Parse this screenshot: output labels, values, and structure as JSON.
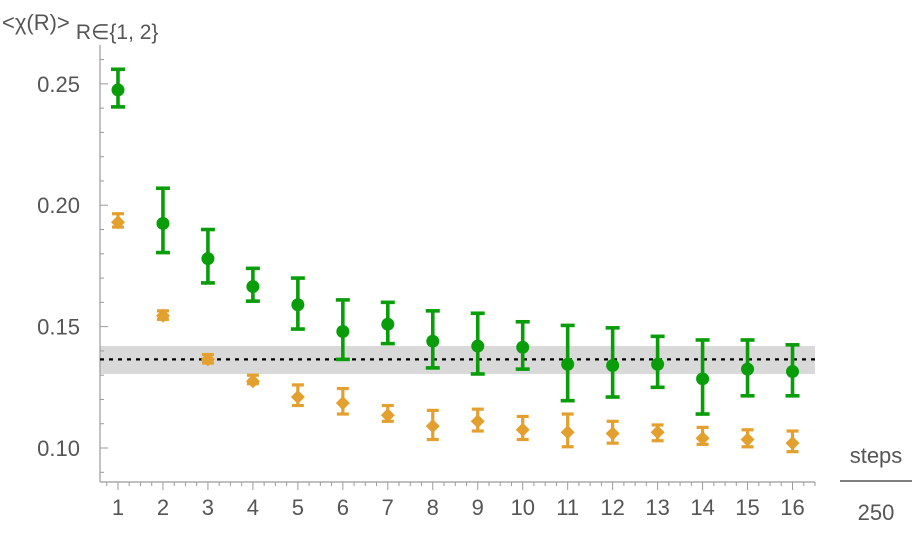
{
  "chart_data": {
    "type": "scatter",
    "ylabel": {
      "main": "<χ(R)>",
      "subscript": "R∈{1, 2}"
    },
    "xlabel": {
      "numerator": "steps",
      "denominator": "250"
    },
    "xlim": [
      0.6,
      16.5
    ],
    "ylim": [
      0.086,
      0.266
    ],
    "x_ticks": [
      1,
      2,
      3,
      4,
      5,
      6,
      7,
      8,
      9,
      10,
      11,
      12,
      13,
      14,
      15,
      16
    ],
    "y_ticks": [
      {
        "value": 0.1,
        "label": "0.10"
      },
      {
        "value": 0.15,
        "label": "0.15"
      },
      {
        "value": 0.2,
        "label": "0.20"
      },
      {
        "value": 0.25,
        "label": "0.25"
      }
    ],
    "reference_line": {
      "y": 0.1365,
      "band": [
        0.1305,
        0.142
      ],
      "style": "dotted",
      "color": "#000000",
      "band_color": "#d9d9d9"
    },
    "series": [
      {
        "marker": "circle",
        "color": "#0a9d0a",
        "points": [
          {
            "x": 1,
            "y": 0.2475,
            "lo": 0.2405,
            "hi": 0.256
          },
          {
            "x": 2,
            "y": 0.1925,
            "lo": 0.1805,
            "hi": 0.207
          },
          {
            "x": 3,
            "y": 0.178,
            "lo": 0.168,
            "hi": 0.19
          },
          {
            "x": 4,
            "y": 0.1665,
            "lo": 0.1605,
            "hi": 0.174
          },
          {
            "x": 5,
            "y": 0.159,
            "lo": 0.149,
            "hi": 0.17
          },
          {
            "x": 6,
            "y": 0.148,
            "lo": 0.1365,
            "hi": 0.161
          },
          {
            "x": 7,
            "y": 0.151,
            "lo": 0.143,
            "hi": 0.16
          },
          {
            "x": 8,
            "y": 0.144,
            "lo": 0.133,
            "hi": 0.1565
          },
          {
            "x": 9,
            "y": 0.142,
            "lo": 0.1305,
            "hi": 0.1555
          },
          {
            "x": 10,
            "y": 0.1415,
            "lo": 0.1325,
            "hi": 0.152
          },
          {
            "x": 11,
            "y": 0.1345,
            "lo": 0.1195,
            "hi": 0.1505
          },
          {
            "x": 12,
            "y": 0.134,
            "lo": 0.121,
            "hi": 0.1495
          },
          {
            "x": 13,
            "y": 0.1345,
            "lo": 0.125,
            "hi": 0.146
          },
          {
            "x": 14,
            "y": 0.1285,
            "lo": 0.114,
            "hi": 0.1445
          },
          {
            "x": 15,
            "y": 0.1325,
            "lo": 0.1215,
            "hi": 0.1445
          },
          {
            "x": 16,
            "y": 0.1315,
            "lo": 0.1215,
            "hi": 0.1425
          }
        ]
      },
      {
        "marker": "diamond",
        "color": "#e3a02e",
        "points": [
          {
            "x": 1,
            "y": 0.193,
            "lo": 0.191,
            "hi": 0.1965
          },
          {
            "x": 2,
            "y": 0.1545,
            "lo": 0.153,
            "hi": 0.1565
          },
          {
            "x": 3,
            "y": 0.1365,
            "lo": 0.135,
            "hi": 0.1385
          },
          {
            "x": 4,
            "y": 0.1275,
            "lo": 0.1265,
            "hi": 0.13
          },
          {
            "x": 5,
            "y": 0.121,
            "lo": 0.1175,
            "hi": 0.126
          },
          {
            "x": 6,
            "y": 0.1185,
            "lo": 0.114,
            "hi": 0.1245
          },
          {
            "x": 7,
            "y": 0.1135,
            "lo": 0.111,
            "hi": 0.1175
          },
          {
            "x": 8,
            "y": 0.109,
            "lo": 0.1035,
            "hi": 0.1155
          },
          {
            "x": 9,
            "y": 0.111,
            "lo": 0.107,
            "hi": 0.116
          },
          {
            "x": 10,
            "y": 0.1075,
            "lo": 0.1035,
            "hi": 0.113
          },
          {
            "x": 11,
            "y": 0.1065,
            "lo": 0.1005,
            "hi": 0.114
          },
          {
            "x": 12,
            "y": 0.106,
            "lo": 0.102,
            "hi": 0.111
          },
          {
            "x": 13,
            "y": 0.1065,
            "lo": 0.103,
            "hi": 0.1095
          },
          {
            "x": 14,
            "y": 0.104,
            "lo": 0.1015,
            "hi": 0.1085
          },
          {
            "x": 15,
            "y": 0.1035,
            "lo": 0.1005,
            "hi": 0.1075
          },
          {
            "x": 16,
            "y": 0.102,
            "lo": 0.0985,
            "hi": 0.107
          }
        ]
      }
    ],
    "grid": false,
    "axis_color": "#9a9a9a"
  }
}
